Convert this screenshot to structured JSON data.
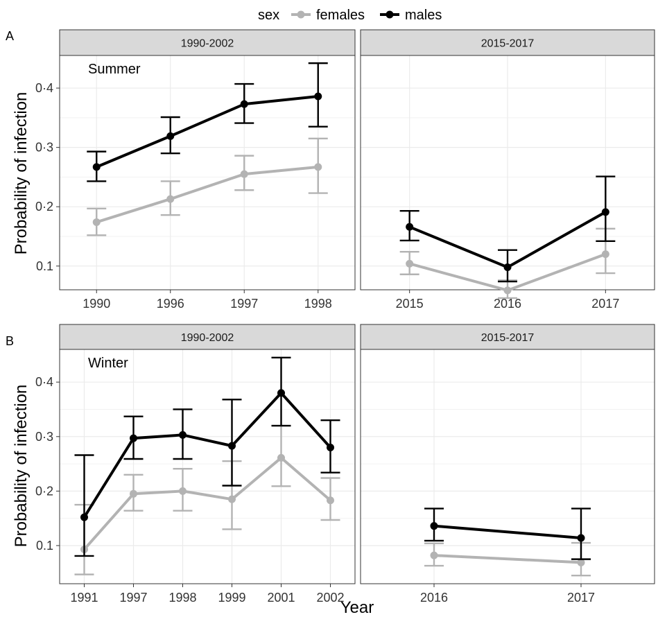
{
  "legend": {
    "title": "sex",
    "entries": [
      {
        "label": "females",
        "color": "#b3b3b3"
      },
      {
        "label": "males",
        "color": "#000000"
      }
    ]
  },
  "x_axis_title": "Year",
  "y_axis_title": "Probability of infection",
  "y_ticks": [
    {
      "value": 0.1,
      "label": "0.1"
    },
    {
      "value": 0.2,
      "label": "0·2"
    },
    {
      "value": 0.3,
      "label": "0·3"
    },
    {
      "value": 0.4,
      "label": "0·4"
    }
  ],
  "rows": [
    {
      "tag": "A",
      "season": "Summer"
    },
    {
      "tag": "B",
      "season": "Winter"
    }
  ],
  "chart_data": [
    {
      "type": "line",
      "panel": "A",
      "period": "1990-2002",
      "annotation": "Summer",
      "categories": [
        "1990",
        "1996",
        "1997",
        "1998"
      ],
      "ylim": [
        0.06,
        0.455
      ],
      "series": [
        {
          "name": "females",
          "values": [
            0.174,
            0.213,
            0.255,
            0.267
          ],
          "lower": [
            0.152,
            0.186,
            0.228,
            0.223
          ],
          "upper": [
            0.197,
            0.243,
            0.286,
            0.315
          ]
        },
        {
          "name": "males",
          "values": [
            0.267,
            0.319,
            0.373,
            0.386
          ],
          "lower": [
            0.243,
            0.29,
            0.341,
            0.335
          ],
          "upper": [
            0.293,
            0.351,
            0.407,
            0.442
          ]
        }
      ]
    },
    {
      "type": "line",
      "panel": "A",
      "period": "2015-2017",
      "categories": [
        "2015",
        "2016",
        "2017"
      ],
      "ylim": [
        0.06,
        0.455
      ],
      "series": [
        {
          "name": "females",
          "values": [
            0.104,
            0.059,
            0.12
          ],
          "lower": [
            0.086,
            0.046,
            0.088
          ],
          "upper": [
            0.124,
            0.076,
            0.163
          ]
        },
        {
          "name": "males",
          "values": [
            0.166,
            0.098,
            0.191
          ],
          "lower": [
            0.143,
            0.074,
            0.142
          ],
          "upper": [
            0.193,
            0.127,
            0.251
          ]
        }
      ]
    },
    {
      "type": "line",
      "panel": "B",
      "period": "1990-2002",
      "annotation": "Winter",
      "categories": [
        "1991",
        "1997",
        "1998",
        "1999",
        "2001",
        "2002"
      ],
      "ylim": [
        0.03,
        0.46
      ],
      "series": [
        {
          "name": "females",
          "values": [
            0.093,
            0.195,
            0.2,
            0.185,
            0.261,
            0.183
          ],
          "lower": [
            0.047,
            0.164,
            0.164,
            0.13,
            0.209,
            0.147
          ],
          "upper": [
            0.175,
            0.23,
            0.241,
            0.255,
            0.32,
            0.224
          ]
        },
        {
          "name": "males",
          "values": [
            0.152,
            0.297,
            0.303,
            0.283,
            0.38,
            0.28
          ],
          "lower": [
            0.081,
            0.259,
            0.259,
            0.21,
            0.32,
            0.234
          ],
          "upper": [
            0.266,
            0.337,
            0.35,
            0.368,
            0.445,
            0.33
          ]
        }
      ]
    },
    {
      "type": "line",
      "panel": "B",
      "period": "2015-2017",
      "categories": [
        "2016",
        "2017"
      ],
      "ylim": [
        0.03,
        0.46
      ],
      "series": [
        {
          "name": "females",
          "values": [
            0.082,
            0.069
          ],
          "lower": [
            0.063,
            0.045
          ],
          "upper": [
            0.104,
            0.105
          ]
        },
        {
          "name": "males",
          "values": [
            0.136,
            0.114
          ],
          "lower": [
            0.109,
            0.075
          ],
          "upper": [
            0.168,
            0.168
          ]
        }
      ]
    }
  ]
}
